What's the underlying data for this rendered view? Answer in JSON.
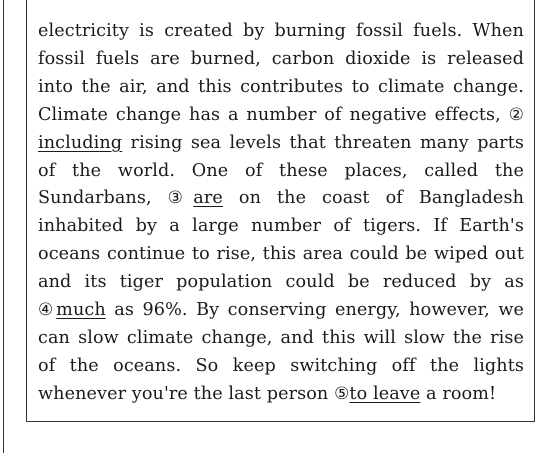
{
  "passage": {
    "seg1": "electricity is created by burning fossil fuels. When fossil fuels are burned, carbon dioxide is released into the air, and this contributes to climate change. Climate change has a number of negative effects, ",
    "marker2": "②",
    "underline2": "including",
    "seg2": " rising sea levels that threaten many parts of the world. One of these places, called the Sundarbans, ",
    "marker3": "③",
    "underline3": "are",
    "seg3": " on the coast of Bangladesh inhabited by a large number of tigers. If Earth's oceans continue to rise, this area could be wiped out and its tiger population could be reduced by as ",
    "marker4": "④",
    "underline4": "much",
    "seg4": " as 96%. By conserving energy, however, we can slow climate change, and this will slow the rise of the oceans. So keep switching off the lights whenever you're the last person ",
    "marker5": "⑤",
    "underline5": "to leave",
    "seg5": " a room!"
  }
}
